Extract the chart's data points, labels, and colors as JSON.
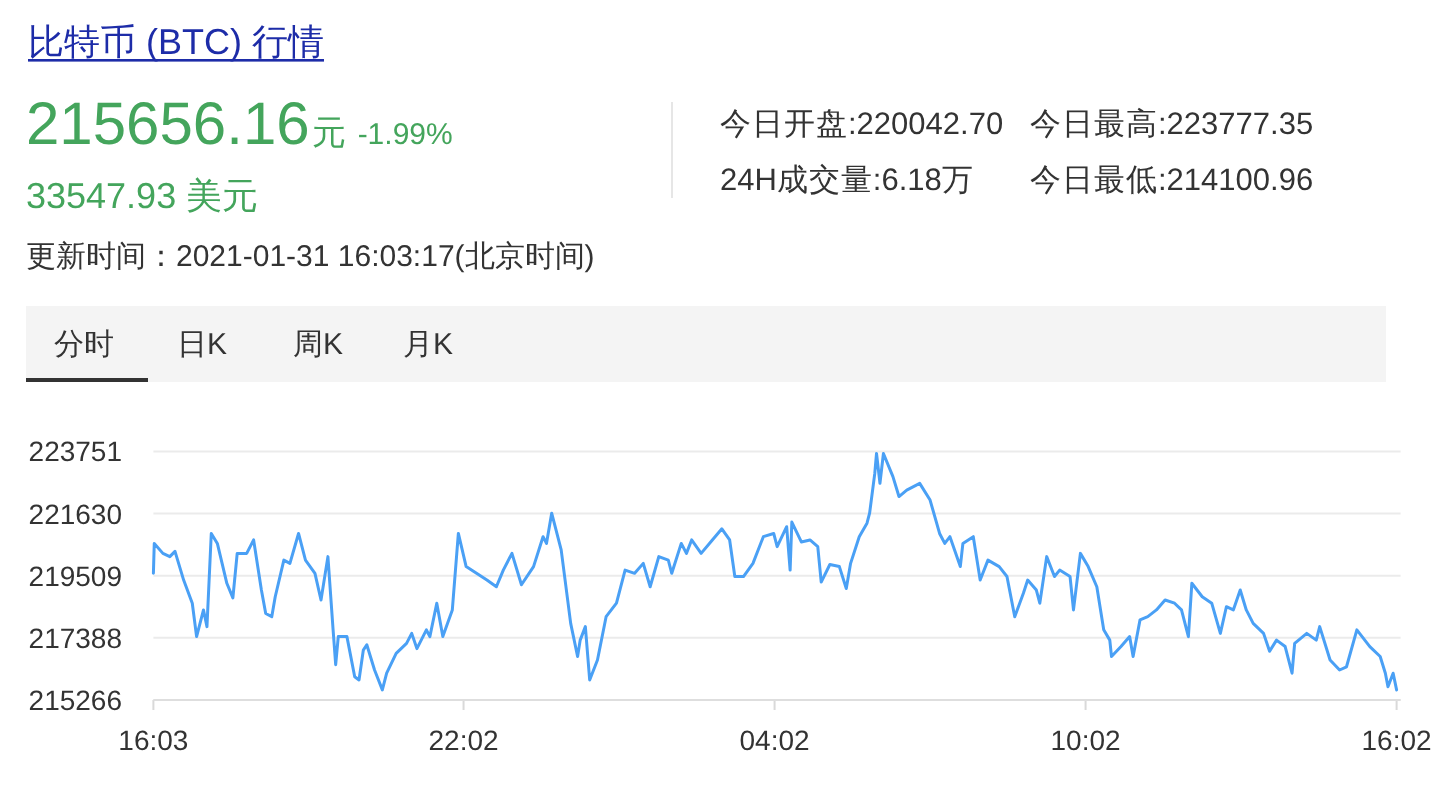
{
  "chart_data": {
    "type": "line",
    "title": "比特币 (BTC) 行情",
    "annotations": [
      "215656.16",
      "元",
      "-1.99%",
      "33547.93 美元",
      "更新时间：2021-01-31 16:03:17(北京时间)",
      "今日开盘:220042.70",
      "今日最高:223777.35",
      "24H成交量:6.18万",
      "今日最低:214100.96",
      "分时",
      "日K",
      "周K",
      "月K"
    ],
    "x": [
      "2021-01-30T16:03",
      "2021-01-30T16:04",
      "2021-01-30T16:14",
      "2021-01-30T16:22",
      "2021-01-30T16:28",
      "2021-01-30T16:38",
      "2021-01-30T16:48",
      "2021-01-30T16:53",
      "2021-01-30T17:01",
      "2021-01-30T17:05",
      "2021-01-30T17:10",
      "2021-01-30T17:17",
      "2021-01-30T17:28",
      "2021-01-30T17:35",
      "2021-01-30T17:40",
      "2021-01-30T17:51",
      "2021-01-30T17:59",
      "2021-01-30T18:08",
      "2021-01-30T18:13",
      "2021-01-30T18:20",
      "2021-01-30T18:24",
      "2021-01-30T18:34",
      "2021-01-30T18:41",
      "2021-01-30T18:51",
      "2021-01-30T18:59",
      "2021-01-30T19:10",
      "2021-01-30T19:17",
      "2021-01-30T19:25",
      "2021-01-30T19:31",
      "2021-01-30T19:34",
      "2021-01-30T19:37",
      "2021-01-30T19:47",
      "2021-01-30T19:56",
      "2021-01-30T20:01",
      "2021-01-30T20:06",
      "2021-01-30T20:10",
      "2021-01-30T20:19",
      "2021-01-30T20:28",
      "2021-01-30T20:33",
      "2021-01-30T20:44",
      "2021-01-30T20:56",
      "2021-01-30T21:02",
      "2021-01-30T21:08",
      "2021-01-30T21:19",
      "2021-01-30T21:23",
      "2021-01-30T21:31",
      "2021-01-30T21:38",
      "2021-01-30T21:49",
      "2021-01-30T21:56",
      "2021-01-30T22:05",
      "2021-01-30T22:17",
      "2021-01-30T22:29",
      "2021-01-30T22:40",
      "2021-01-30T22:48",
      "2021-01-30T22:58",
      "2021-01-30T23:09",
      "2021-01-30T23:23",
      "2021-01-30T23:34",
      "2021-01-30T23:38",
      "2021-01-30T23:44",
      "2021-01-30T23:55",
      "2021-01-31T00:06",
      "2021-01-31T00:14",
      "2021-01-31T00:17",
      "2021-01-31T00:23",
      "2021-01-31T00:28",
      "2021-01-31T00:37",
      "2021-01-31T00:47",
      "2021-01-31T00:59",
      "2021-01-31T01:09",
      "2021-01-31T01:20",
      "2021-01-31T01:30",
      "2021-01-31T01:38",
      "2021-01-31T01:48",
      "2021-01-31T01:59",
      "2021-01-31T02:03",
      "2021-01-31T02:14",
      "2021-01-31T02:20",
      "2021-01-31T02:26",
      "2021-01-31T02:37",
      "2021-01-31T02:50",
      "2021-01-31T03:01",
      "2021-01-31T03:10",
      "2021-01-31T03:16",
      "2021-01-31T03:26",
      "2021-01-31T03:37",
      "2021-01-31T03:49",
      "2021-01-31T04:01",
      "2021-01-31T04:05",
      "2021-01-31T04:16",
      "2021-01-31T04:20",
      "2021-01-31T04:22",
      "2021-01-31T04:33",
      "2021-01-31T04:43",
      "2021-01-31T04:52",
      "2021-01-31T04:56",
      "2021-01-31T05:06",
      "2021-01-31T05:17",
      "2021-01-31T05:25",
      "2021-01-31T05:30",
      "2021-01-31T05:40",
      "2021-01-31T05:49",
      "2021-01-31T05:52",
      "2021-01-31T05:58",
      "2021-01-31T06:00",
      "2021-01-31T06:04",
      "2021-01-31T06:08",
      "2021-01-31T06:19",
      "2021-01-31T06:26",
      "2021-01-31T06:35",
      "2021-01-31T06:50",
      "2021-01-31T07:02",
      "2021-01-31T07:13",
      "2021-01-31T07:19",
      "2021-01-31T07:25",
      "2021-01-31T07:37",
      "2021-01-31T07:40",
      "2021-01-31T07:52",
      "2021-01-31T08:00",
      "2021-01-31T08:09",
      "2021-01-31T08:22",
      "2021-01-31T08:31",
      "2021-01-31T08:40",
      "2021-01-31T08:50",
      "2021-01-31T08:55",
      "2021-01-31T09:05",
      "2021-01-31T09:09",
      "2021-01-31T09:17",
      "2021-01-31T09:26",
      "2021-01-31T09:32",
      "2021-01-31T09:44",
      "2021-01-31T09:48",
      "2021-01-31T09:56",
      "2021-01-31T10:05",
      "2021-01-31T10:15",
      "2021-01-31T10:23",
      "2021-01-31T10:30",
      "2021-01-31T10:32",
      "2021-01-31T10:43",
      "2021-01-31T10:53",
      "2021-01-31T10:57",
      "2021-01-31T11:05",
      "2021-01-31T11:14",
      "2021-01-31T11:24",
      "2021-01-31T11:34",
      "2021-01-31T11:45",
      "2021-01-31T11:53",
      "2021-01-31T12:01",
      "2021-01-31T12:05",
      "2021-01-31T12:17",
      "2021-01-31T12:28",
      "2021-01-31T12:38",
      "2021-01-31T12:45",
      "2021-01-31T12:53",
      "2021-01-31T13:01",
      "2021-01-31T13:08",
      "2021-01-31T13:16",
      "2021-01-31T13:28",
      "2021-01-31T13:35",
      "2021-01-31T13:43",
      "2021-01-31T13:53",
      "2021-01-31T14:01",
      "2021-01-31T14:04",
      "2021-01-31T14:18",
      "2021-01-31T14:29",
      "2021-01-31T14:33",
      "2021-01-31T14:45",
      "2021-01-31T14:56",
      "2021-01-31T15:04",
      "2021-01-31T15:16",
      "2021-01-31T15:31",
      "2021-01-31T15:43",
      "2021-01-31T15:49",
      "2021-01-31T15:52",
      "2021-01-31T15:58",
      "2021-01-31T16:02"
    ],
    "series": [
      {
        "color": "#4aa0f5",
        "values": [
          219590,
          220610,
          220270,
          220160,
          220340,
          219360,
          218570,
          217430,
          218340,
          217770,
          220950,
          220610,
          219250,
          218750,
          220270,
          220270,
          220730,
          219020,
          218220,
          218110,
          218790,
          220040,
          219930,
          220950,
          220040,
          219590,
          218680,
          220160,
          217660,
          216470,
          217430,
          217430,
          216060,
          215950,
          216970,
          217150,
          216290,
          215610,
          216180,
          216860,
          217200,
          217540,
          217020,
          217660,
          217430,
          218570,
          217430,
          218340,
          220950,
          219820,
          219590,
          219360,
          219130,
          219700,
          220270,
          219200,
          219820,
          220840,
          220610,
          221640,
          220390,
          217880,
          216750,
          217310,
          217770,
          215950,
          216630,
          218110,
          218570,
          219700,
          219590,
          219930,
          219130,
          220160,
          220040,
          219590,
          220610,
          220270,
          220730,
          220270,
          220730,
          221110,
          220730,
          219480,
          219480,
          219930,
          220840,
          220950,
          220500,
          221180,
          219700,
          221340,
          220660,
          220730,
          220500,
          219290,
          219890,
          219820,
          219070,
          219930,
          220840,
          221300,
          221640,
          223000,
          223680,
          222660,
          223680,
          222890,
          222210,
          222430,
          222660,
          222090,
          220950,
          220610,
          220840,
          219820,
          220610,
          220840,
          219360,
          220040,
          219820,
          219480,
          218110,
          218910,
          219360,
          219020,
          218570,
          220160,
          219480,
          219700,
          219480,
          218340,
          220270,
          219820,
          219130,
          217660,
          217310,
          216750,
          217090,
          217430,
          216750,
          218000,
          218110,
          218340,
          218680,
          218570,
          218340,
          217430,
          219250,
          218790,
          218570,
          217540,
          218450,
          218340,
          219020,
          218340,
          217880,
          217540,
          216930,
          217310,
          217090,
          216180,
          217200,
          217540,
          217310,
          217770,
          216630,
          216290,
          216400,
          217660,
          217090,
          216750,
          216180,
          215720,
          216180,
          215610
        ]
      }
    ],
    "xlim": [
      "2021-01-30T16:03",
      "2021-01-31T16:02"
    ],
    "xticks": [
      {
        "value": "2021-01-30T16:03",
        "label": "16:03"
      },
      {
        "value": "2021-01-30T22:02",
        "label": "22:02"
      },
      {
        "value": "2021-01-31T04:02",
        "label": "04:02"
      },
      {
        "value": "2021-01-31T10:02",
        "label": "10:02"
      },
      {
        "value": "2021-01-31T16:02",
        "label": "16:02"
      }
    ],
    "ylim": [
      215266,
      223751
    ],
    "yticks": [
      215266,
      217388,
      219509,
      221630,
      223751
    ],
    "grid": "y"
  }
}
